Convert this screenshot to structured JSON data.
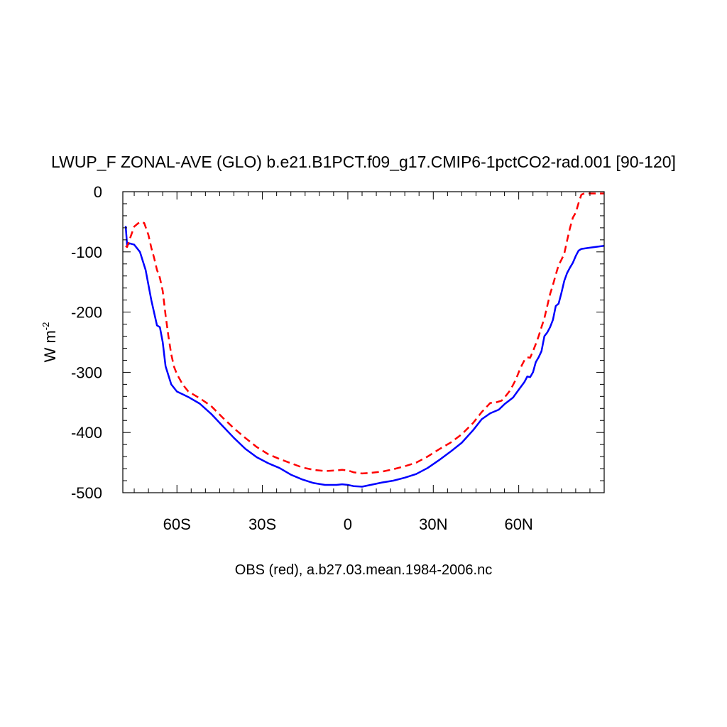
{
  "chart_data": {
    "type": "line",
    "title": "LWUP_F ZONAL-AVE (GLO) b.e21.B1PCT.f09_g17.CMIP6-1pctCO2-rad.001 [90-120]",
    "xlabel": "OBS (red), a.b27.03.mean.1984-2006.nc",
    "ylabel_main": "W m",
    "ylabel_sup": "-2",
    "xlim": [
      -79,
      90
    ],
    "ylim": [
      -500,
      0
    ],
    "x_ticks": [
      {
        "value": -60,
        "label": "60S"
      },
      {
        "value": -30,
        "label": "30S"
      },
      {
        "value": 0,
        "label": "0"
      },
      {
        "value": 30,
        "label": "30N"
      },
      {
        "value": 60,
        "label": "60N"
      }
    ],
    "y_ticks": [
      {
        "value": 0,
        "label": "0"
      },
      {
        "value": -100,
        "label": "-100"
      },
      {
        "value": -200,
        "label": "-200"
      },
      {
        "value": -300,
        "label": "-300"
      },
      {
        "value": -400,
        "label": "-400"
      },
      {
        "value": -500,
        "label": "-500"
      }
    ],
    "grid": false,
    "legend": "none",
    "series": [
      {
        "color": "#0000ff",
        "dash": "solid",
        "points": [
          [
            -78,
            -57
          ],
          [
            -77.5,
            -88
          ],
          [
            -76.5,
            -86
          ],
          [
            -75,
            -88
          ],
          [
            -73,
            -100
          ],
          [
            -71,
            -130
          ],
          [
            -69,
            -180
          ],
          [
            -67,
            -222
          ],
          [
            -66,
            -225
          ],
          [
            -65,
            -250
          ],
          [
            -64,
            -290
          ],
          [
            -62,
            -320
          ],
          [
            -60,
            -332
          ],
          [
            -56,
            -341
          ],
          [
            -52,
            -352
          ],
          [
            -48,
            -369
          ],
          [
            -44,
            -389
          ],
          [
            -40,
            -409
          ],
          [
            -36,
            -427
          ],
          [
            -32,
            -441
          ],
          [
            -28,
            -451
          ],
          [
            -24,
            -459
          ],
          [
            -20,
            -470
          ],
          [
            -16,
            -478
          ],
          [
            -12,
            -484
          ],
          [
            -8,
            -487
          ],
          [
            -4,
            -487
          ],
          [
            -2,
            -486
          ],
          [
            0,
            -487
          ],
          [
            2,
            -489
          ],
          [
            5,
            -490
          ],
          [
            8,
            -487
          ],
          [
            12,
            -483
          ],
          [
            16,
            -480
          ],
          [
            20,
            -475
          ],
          [
            24,
            -469
          ],
          [
            28,
            -459
          ],
          [
            32,
            -446
          ],
          [
            36,
            -432
          ],
          [
            40,
            -417
          ],
          [
            44,
            -396
          ],
          [
            47,
            -378
          ],
          [
            50,
            -368
          ],
          [
            53,
            -362
          ],
          [
            55,
            -353
          ],
          [
            58,
            -342
          ],
          [
            60,
            -329
          ],
          [
            62,
            -316
          ],
          [
            63,
            -307
          ],
          [
            64,
            -308
          ],
          [
            65,
            -300
          ],
          [
            66,
            -283
          ],
          [
            67,
            -275
          ],
          [
            68,
            -265
          ],
          [
            69,
            -240
          ],
          [
            70,
            -234
          ],
          [
            71,
            -225
          ],
          [
            72,
            -213
          ],
          [
            73,
            -190
          ],
          [
            74,
            -186
          ],
          [
            75,
            -168
          ],
          [
            76,
            -148
          ],
          [
            77,
            -135
          ],
          [
            78,
            -126
          ],
          [
            79,
            -118
          ],
          [
            80,
            -107
          ],
          [
            81,
            -98
          ],
          [
            82,
            -95
          ],
          [
            85,
            -93
          ],
          [
            88,
            -91
          ],
          [
            90,
            -90
          ]
        ]
      },
      {
        "color": "#ff0000",
        "dash": "dashed",
        "points": [
          [
            -78,
            -90
          ],
          [
            -77.5,
            -92
          ],
          [
            -76.5,
            -78
          ],
          [
            -75,
            -58
          ],
          [
            -73,
            -50
          ],
          [
            -71.5,
            -52
          ],
          [
            -70,
            -72
          ],
          [
            -69,
            -93
          ],
          [
            -68,
            -110
          ],
          [
            -67,
            -130
          ],
          [
            -66,
            -143
          ],
          [
            -65,
            -165
          ],
          [
            -64,
            -205
          ],
          [
            -63,
            -240
          ],
          [
            -62,
            -270
          ],
          [
            -61,
            -291
          ],
          [
            -60,
            -303
          ],
          [
            -58,
            -320
          ],
          [
            -56,
            -332
          ],
          [
            -52,
            -343
          ],
          [
            -48,
            -356
          ],
          [
            -44,
            -375
          ],
          [
            -40,
            -393
          ],
          [
            -36,
            -409
          ],
          [
            -32,
            -424
          ],
          [
            -28,
            -436
          ],
          [
            -24,
            -444
          ],
          [
            -20,
            -451
          ],
          [
            -16,
            -458
          ],
          [
            -12,
            -462
          ],
          [
            -8,
            -464
          ],
          [
            -4,
            -463
          ],
          [
            -2,
            -462
          ],
          [
            0,
            -463
          ],
          [
            2,
            -466
          ],
          [
            5,
            -468
          ],
          [
            8,
            -467
          ],
          [
            12,
            -465
          ],
          [
            16,
            -461
          ],
          [
            20,
            -456
          ],
          [
            24,
            -450
          ],
          [
            28,
            -440
          ],
          [
            32,
            -428
          ],
          [
            36,
            -417
          ],
          [
            40,
            -403
          ],
          [
            44,
            -384
          ],
          [
            47,
            -366
          ],
          [
            50,
            -351
          ],
          [
            52,
            -350
          ],
          [
            54,
            -347
          ],
          [
            55,
            -342
          ],
          [
            57,
            -330
          ],
          [
            59,
            -312
          ],
          [
            60,
            -300
          ],
          [
            61,
            -289
          ],
          [
            62,
            -280
          ],
          [
            63,
            -275
          ],
          [
            64,
            -276
          ],
          [
            65,
            -265
          ],
          [
            66,
            -253
          ],
          [
            67,
            -240
          ],
          [
            68,
            -225
          ],
          [
            69,
            -210
          ],
          [
            70,
            -190
          ],
          [
            71,
            -170
          ],
          [
            72,
            -155
          ],
          [
            73,
            -138
          ],
          [
            74,
            -122
          ],
          [
            75,
            -113
          ],
          [
            76,
            -103
          ],
          [
            77,
            -81
          ],
          [
            78,
            -60
          ],
          [
            79,
            -43
          ],
          [
            80,
            -35
          ],
          [
            81,
            -19
          ],
          [
            82,
            -5
          ],
          [
            83,
            -3
          ],
          [
            90,
            -3
          ]
        ]
      }
    ]
  }
}
